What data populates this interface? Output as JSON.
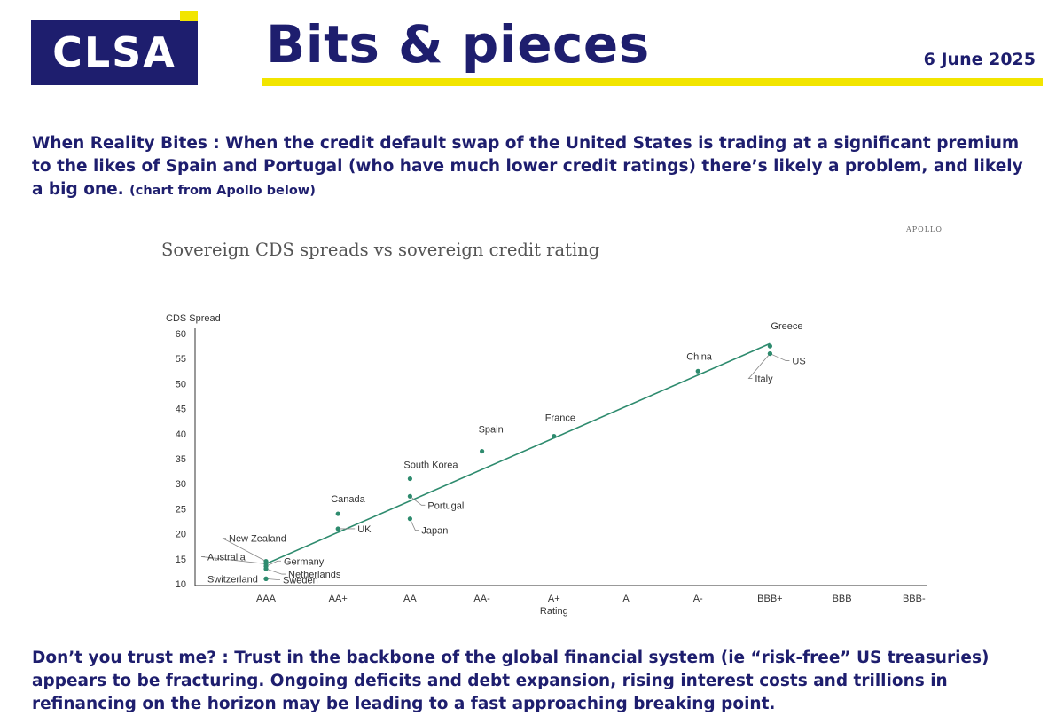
{
  "header": {
    "logo_text": "CLSA",
    "title": "Bits & pieces",
    "date": "6 June 2025"
  },
  "section1": {
    "body": "When Reality Bites : When the credit default swap of the United States is trading at a significant premium to the likes of Spain and Portugal (who have much lower credit ratings) there’s likely a problem, and likely a big one.",
    "note": "(chart from Apollo below)"
  },
  "section2": {
    "body": "Don’t you trust me? : Trust in the backbone of the global financial system (ie “risk-free” US treasuries) appears to be fracturing. Ongoing deficits and debt expansion, rising interest costs and trillions in refinancing on the horizon may be leading to a fast approaching breaking point."
  },
  "chart_source": "APOLLO",
  "colors": {
    "brand_navy": "#1e1e6e",
    "brand_yellow": "#f2e500",
    "series_green": "#2e8b6e"
  },
  "chart_data": {
    "type": "scatter",
    "title": "Sovereign CDS spreads vs sovereign credit rating",
    "xlabel": "Rating",
    "ylabel": "CDS Spread",
    "categories": [
      "AAA",
      "AA+",
      "AA",
      "AA-",
      "A+",
      "A",
      "A-",
      "BBB+",
      "BBB",
      "BBB-"
    ],
    "ylim": [
      10,
      60
    ],
    "yticks": [
      10,
      15,
      20,
      25,
      30,
      35,
      40,
      45,
      50,
      55,
      60
    ],
    "grid": false,
    "trendline": {
      "from": {
        "x": "AAA",
        "y": 14
      },
      "to": {
        "x": "BBB+",
        "y": 58
      }
    },
    "points": [
      {
        "label": "New Zealand",
        "x": "AAA",
        "y": 14.5
      },
      {
        "label": "Australia",
        "x": "AAA",
        "y": 14
      },
      {
        "label": "Germany",
        "x": "AAA",
        "y": 13.5
      },
      {
        "label": "Netherlands",
        "x": "AAA",
        "y": 13
      },
      {
        "label": "Switzerland",
        "x": "AAA",
        "y": 11
      },
      {
        "label": "Sweden",
        "x": "AAA",
        "y": 11
      },
      {
        "label": "Canada",
        "x": "AA+",
        "y": 24
      },
      {
        "label": "UK",
        "x": "AA+",
        "y": 21
      },
      {
        "label": "South Korea",
        "x": "AA",
        "y": 31
      },
      {
        "label": "Portugal",
        "x": "AA",
        "y": 27.5
      },
      {
        "label": "Japan",
        "x": "AA",
        "y": 23
      },
      {
        "label": "Spain",
        "x": "AA-",
        "y": 36.5
      },
      {
        "label": "France",
        "x": "A+",
        "y": 39.5
      },
      {
        "label": "China",
        "x": "A-",
        "y": 52.5
      },
      {
        "label": "Greece",
        "x": "BBB+",
        "y": 57.5
      },
      {
        "label": "US",
        "x": "BBB+",
        "y": 56
      },
      {
        "label": "Italy",
        "x": "BBB+",
        "y": 56
      }
    ]
  }
}
